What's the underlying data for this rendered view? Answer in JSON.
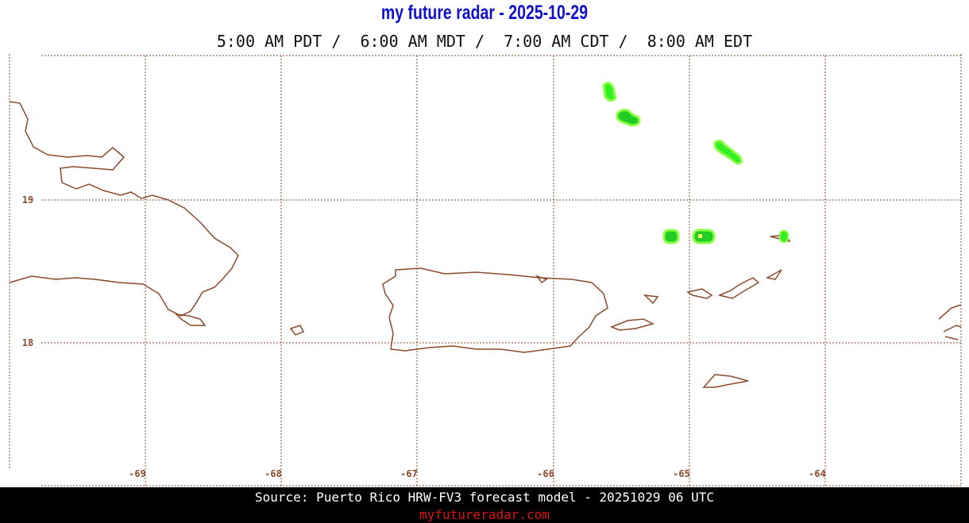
{
  "header": {
    "title": "my future radar - 2025-10-29",
    "times": "5:00 AM PDT /  6:00 AM MDT /  7:00 AM CDT /  8:00 AM EDT"
  },
  "map": {
    "lon_labels": [
      "-69",
      "-68",
      "-67",
      "-66",
      "-65",
      "-64"
    ],
    "lat_labels": [
      "19",
      "18"
    ]
  },
  "footer": {
    "source": "Source: Puerto Rico HRW-FV3 forecast model - 20251029 06 UTC",
    "site": "myfutureradar.com"
  }
}
